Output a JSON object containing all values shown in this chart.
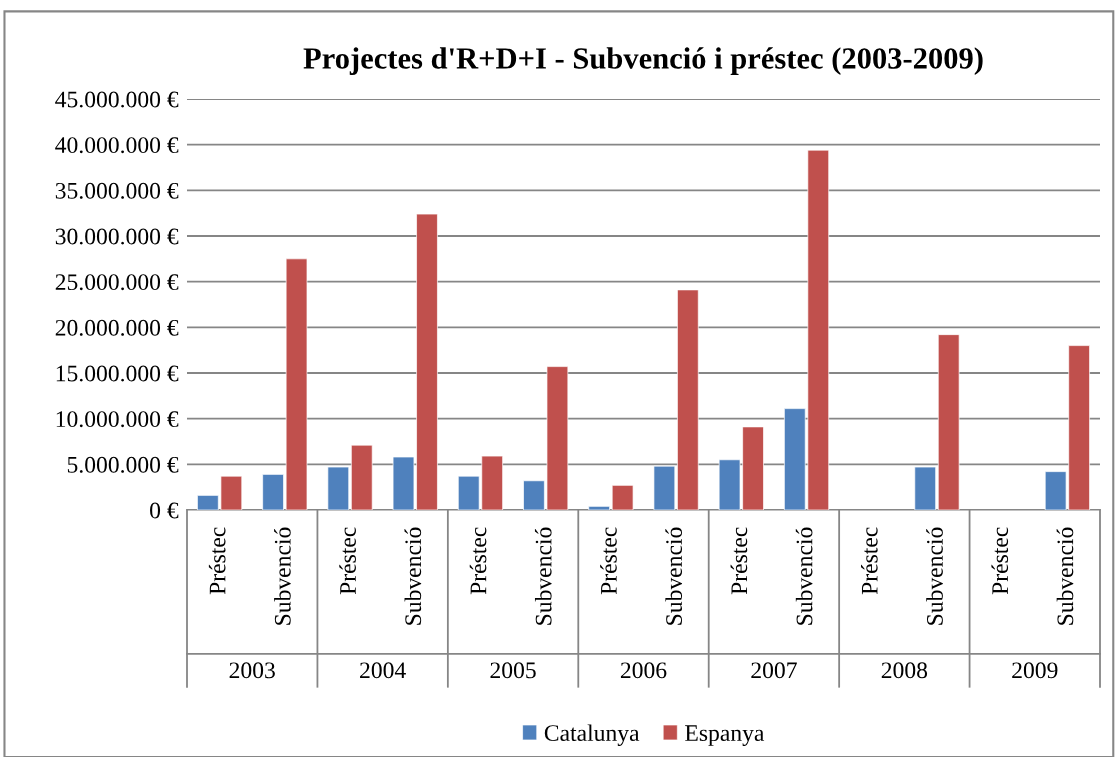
{
  "chart_data": {
    "type": "bar",
    "title": "Projectes d'R+D+I - Subvenció i préstec (2003-2009)",
    "categories": [
      "Préstec",
      "Subvenció",
      "Préstec",
      "Subvenció",
      "Préstec",
      "Subvenció",
      "Préstec",
      "Subvenció",
      "Préstec",
      "Subvenció",
      "Préstec",
      "Subvenció",
      "Préstec",
      "Subvenció"
    ],
    "annotations": [
      "2003",
      "2004",
      "2005",
      "2006",
      "2007",
      "2008",
      "2009"
    ],
    "series": [
      {
        "name": "Catalunya",
        "color": "#4f81bd",
        "values": [
          1600000,
          3900000,
          4700000,
          5800000,
          3700000,
          3200000,
          400000,
          4800000,
          5500000,
          11100000,
          null,
          4700000,
          null,
          4200000
        ]
      },
      {
        "name": "Espanya",
        "color": "#c0504d",
        "values": [
          3700000,
          27500000,
          7100000,
          32400000,
          5900000,
          15700000,
          2700000,
          24100000,
          9100000,
          39400000,
          null,
          19200000,
          null,
          18000000
        ]
      }
    ],
    "ylim": [
      0,
      45000000
    ],
    "yticks": [
      {
        "value": 0,
        "label": "0 €"
      },
      {
        "value": 5000000,
        "label": "5.000.000 €"
      },
      {
        "value": 10000000,
        "label": "10.000.000 €"
      },
      {
        "value": 15000000,
        "label": "15.000.000 €"
      },
      {
        "value": 20000000,
        "label": "20.000.000 €"
      },
      {
        "value": 25000000,
        "label": "25.000.000 €"
      },
      {
        "value": 30000000,
        "label": "30.000.000 €"
      },
      {
        "value": 35000000,
        "label": "35.000.000 €"
      },
      {
        "value": 40000000,
        "label": "40.000.000 €"
      },
      {
        "value": 45000000,
        "label": "45.000.000 €"
      }
    ],
    "grid": "y",
    "legend": "bottom"
  }
}
